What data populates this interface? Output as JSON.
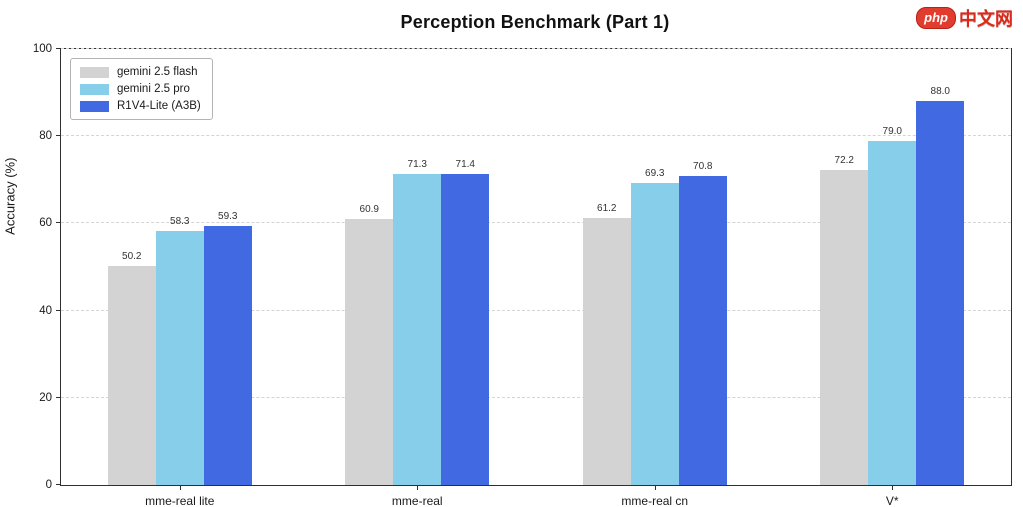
{
  "logo": {
    "badge_text": "php",
    "site_text": "中文网",
    "badge_color": "#e23c2e",
    "text_color": "#d92a1c"
  },
  "chart_data": {
    "type": "bar",
    "title": "Perception Benchmark (Part 1)",
    "xlabel": "",
    "ylabel": "Accuracy (%)",
    "ylim": [
      0,
      100
    ],
    "yticks": [
      0,
      20,
      40,
      60,
      80,
      100
    ],
    "categories": [
      "mme-real lite",
      "mme-real",
      "mme-real cn",
      "V*"
    ],
    "series": [
      {
        "name": "gemini 2.5 flash",
        "color": "#d3d3d3",
        "values": [
          50.2,
          60.9,
          61.2,
          72.2
        ]
      },
      {
        "name": "gemini 2.5 pro",
        "color": "#87ceeb",
        "values": [
          58.3,
          71.3,
          69.3,
          79.0
        ]
      },
      {
        "name": "R1V4-Lite (A3B)",
        "color": "#4169e1",
        "values": [
          59.3,
          71.4,
          70.8,
          88.0
        ]
      }
    ],
    "grid": "dashed-horizontal",
    "legend_position": "upper-left",
    "value_label_format": "one_decimal"
  }
}
